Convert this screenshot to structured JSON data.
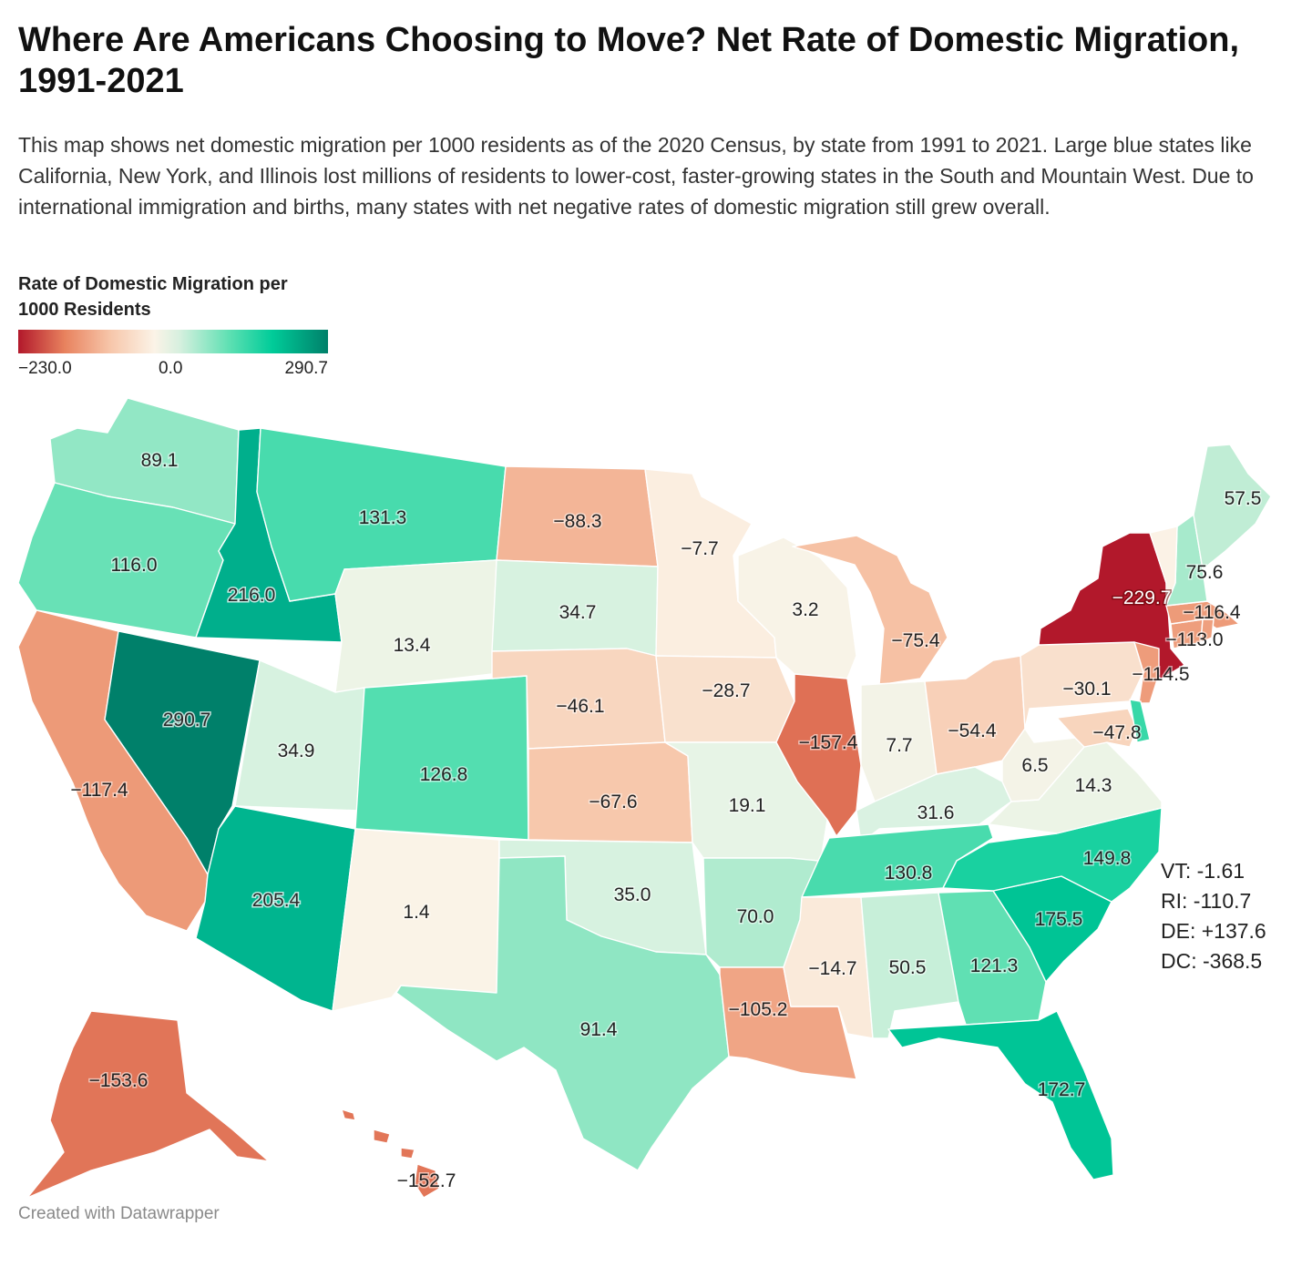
{
  "header": {
    "title": "Where Are Americans Choosing to Move? Net Rate of Domestic Migration, 1991-2021",
    "description": "This map shows net domestic migration per 1000 residents as of the 2020 Census, by state from 1991 to 2021. Large blue states like California, New York, and Illinois lost millions of residents to lower-cost, faster-growing states in the South and Mountain West. Due to international immigration and births, many states with net negative rates of domestic migration still grew overall."
  },
  "legend": {
    "title": "Rate of Domestic Migration per 1000 Residents",
    "min_label": "−230.0",
    "mid_label": "0.0",
    "max_label": "290.7",
    "min": -230.0,
    "max": 290.7,
    "colors": {
      "low": "#b2182b",
      "neutral": "#fbf3e7",
      "high": "#00806a"
    }
  },
  "states": [
    {
      "code": "WA",
      "label": "89.1",
      "value": 89.1
    },
    {
      "code": "OR",
      "label": "116.0",
      "value": 116.0
    },
    {
      "code": "CA",
      "label": "−117.4",
      "value": -117.4
    },
    {
      "code": "ID",
      "label": "216.0",
      "value": 216.0
    },
    {
      "code": "NV",
      "label": "290.7",
      "value": 290.7
    },
    {
      "code": "MT",
      "label": "131.3",
      "value": 131.3
    },
    {
      "code": "WY",
      "label": "13.4",
      "value": 13.4
    },
    {
      "code": "UT",
      "label": "34.9",
      "value": 34.9
    },
    {
      "code": "AZ",
      "label": "205.4",
      "value": 205.4
    },
    {
      "code": "CO",
      "label": "126.8",
      "value": 126.8
    },
    {
      "code": "NM",
      "label": "1.4",
      "value": 1.4
    },
    {
      "code": "ND",
      "label": "−88.3",
      "value": -88.3
    },
    {
      "code": "SD",
      "label": "34.7",
      "value": 34.7
    },
    {
      "code": "NE",
      "label": "−46.1",
      "value": -46.1
    },
    {
      "code": "KS",
      "label": "−67.6",
      "value": -67.6
    },
    {
      "code": "OK",
      "label": "35.0",
      "value": 35.0
    },
    {
      "code": "TX",
      "label": "91.4",
      "value": 91.4
    },
    {
      "code": "MN",
      "label": "−7.7",
      "value": -7.7
    },
    {
      "code": "IA",
      "label": "−28.7",
      "value": -28.7
    },
    {
      "code": "MO",
      "label": "19.1",
      "value": 19.1
    },
    {
      "code": "AR",
      "label": "70.0",
      "value": 70.0
    },
    {
      "code": "LA",
      "label": "−105.2",
      "value": -105.2
    },
    {
      "code": "WI",
      "label": "3.2",
      "value": 3.2
    },
    {
      "code": "IL",
      "label": "−157.4",
      "value": -157.4
    },
    {
      "code": "MI",
      "label": "−75.4",
      "value": -75.4
    },
    {
      "code": "IN",
      "label": "7.7",
      "value": 7.7
    },
    {
      "code": "OH",
      "label": "−54.4",
      "value": -54.4
    },
    {
      "code": "KY",
      "label": "31.6",
      "value": 31.6
    },
    {
      "code": "TN",
      "label": "130.8",
      "value": 130.8
    },
    {
      "code": "MS",
      "label": "−14.7",
      "value": -14.7
    },
    {
      "code": "AL",
      "label": "50.5",
      "value": 50.5
    },
    {
      "code": "GA",
      "label": "121.3",
      "value": 121.3
    },
    {
      "code": "FL",
      "label": "172.7",
      "value": 172.7
    },
    {
      "code": "SC",
      "label": "175.5",
      "value": 175.5
    },
    {
      "code": "NC",
      "label": "149.8",
      "value": 149.8
    },
    {
      "code": "VA",
      "label": "14.3",
      "value": 14.3
    },
    {
      "code": "WV",
      "label": "6.5",
      "value": 6.5
    },
    {
      "code": "PA",
      "label": "−30.1",
      "value": -30.1
    },
    {
      "code": "NY",
      "label": "−229.7",
      "value": -229.7
    },
    {
      "code": "MD",
      "label": "−47.8",
      "value": -47.8
    },
    {
      "code": "NJ",
      "label": "−114.5",
      "value": -114.5
    },
    {
      "code": "CT",
      "label": "−113.0",
      "value": -113.0
    },
    {
      "code": "MA",
      "label": "−116.4",
      "value": -116.4
    },
    {
      "code": "NH",
      "label": "75.6",
      "value": 75.6
    },
    {
      "code": "ME",
      "label": "57.5",
      "value": 57.5
    },
    {
      "code": "AK",
      "label": "−153.6",
      "value": -153.6
    },
    {
      "code": "HI",
      "label": "−152.7",
      "value": -152.7
    },
    {
      "code": "VT",
      "value": -1.61
    },
    {
      "code": "RI",
      "value": -110.7
    },
    {
      "code": "DE",
      "value": 137.6
    },
    {
      "code": "DC",
      "value": -368.5
    }
  ],
  "side_notes": [
    "VT: -1.61",
    "RI: -110.7",
    "DE: +137.6",
    "DC: -368.5"
  ],
  "footer": {
    "credit": "Created with Datawrapper"
  }
}
